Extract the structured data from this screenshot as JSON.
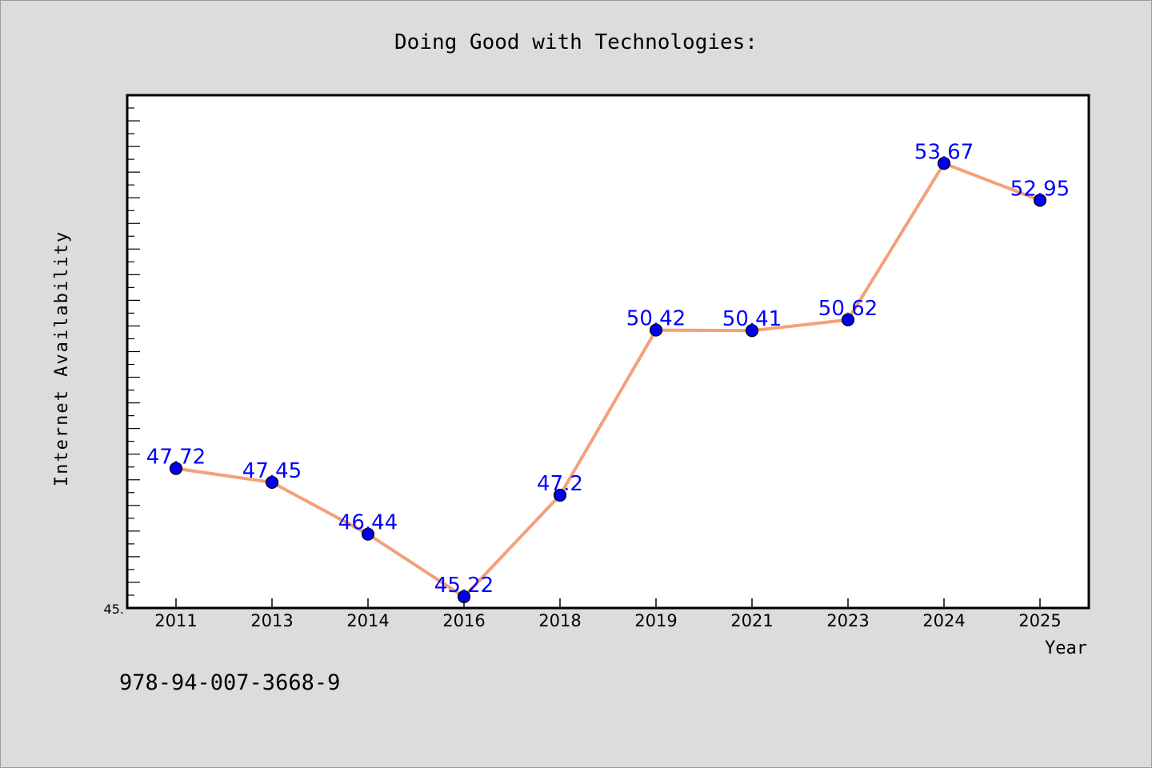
{
  "chart_data": {
    "type": "line",
    "title": "Doing Good with Technologies:",
    "xlabel": "Year",
    "ylabel": "Internet Availability",
    "categories": [
      "2011",
      "2013",
      "2014",
      "2016",
      "2018",
      "2019",
      "2021",
      "2023",
      "2024",
      "2025"
    ],
    "series": [
      {
        "values": [
          47.72,
          47.45,
          46.44,
          45.22,
          47.2,
          50.42,
          50.41,
          50.62,
          53.67,
          52.95
        ]
      }
    ],
    "data_labels": [
      "47.72",
      "47.45",
      "46.44",
      "45.22",
      "47.2",
      "50.42",
      "50.41",
      "50.62",
      "53.67",
      "52.95"
    ],
    "ylim": [
      45.0,
      55.0
    ],
    "y_tick_label": "45.",
    "grid": false,
    "legend": "none",
    "line_color": "#f4a07a",
    "marker_color": "#0000ee",
    "label_color": "#0000ff",
    "plot_background": "#ffffff",
    "page_background": "#dcdcdc"
  },
  "footer": {
    "isbn": "978-94-007-3668-9"
  }
}
